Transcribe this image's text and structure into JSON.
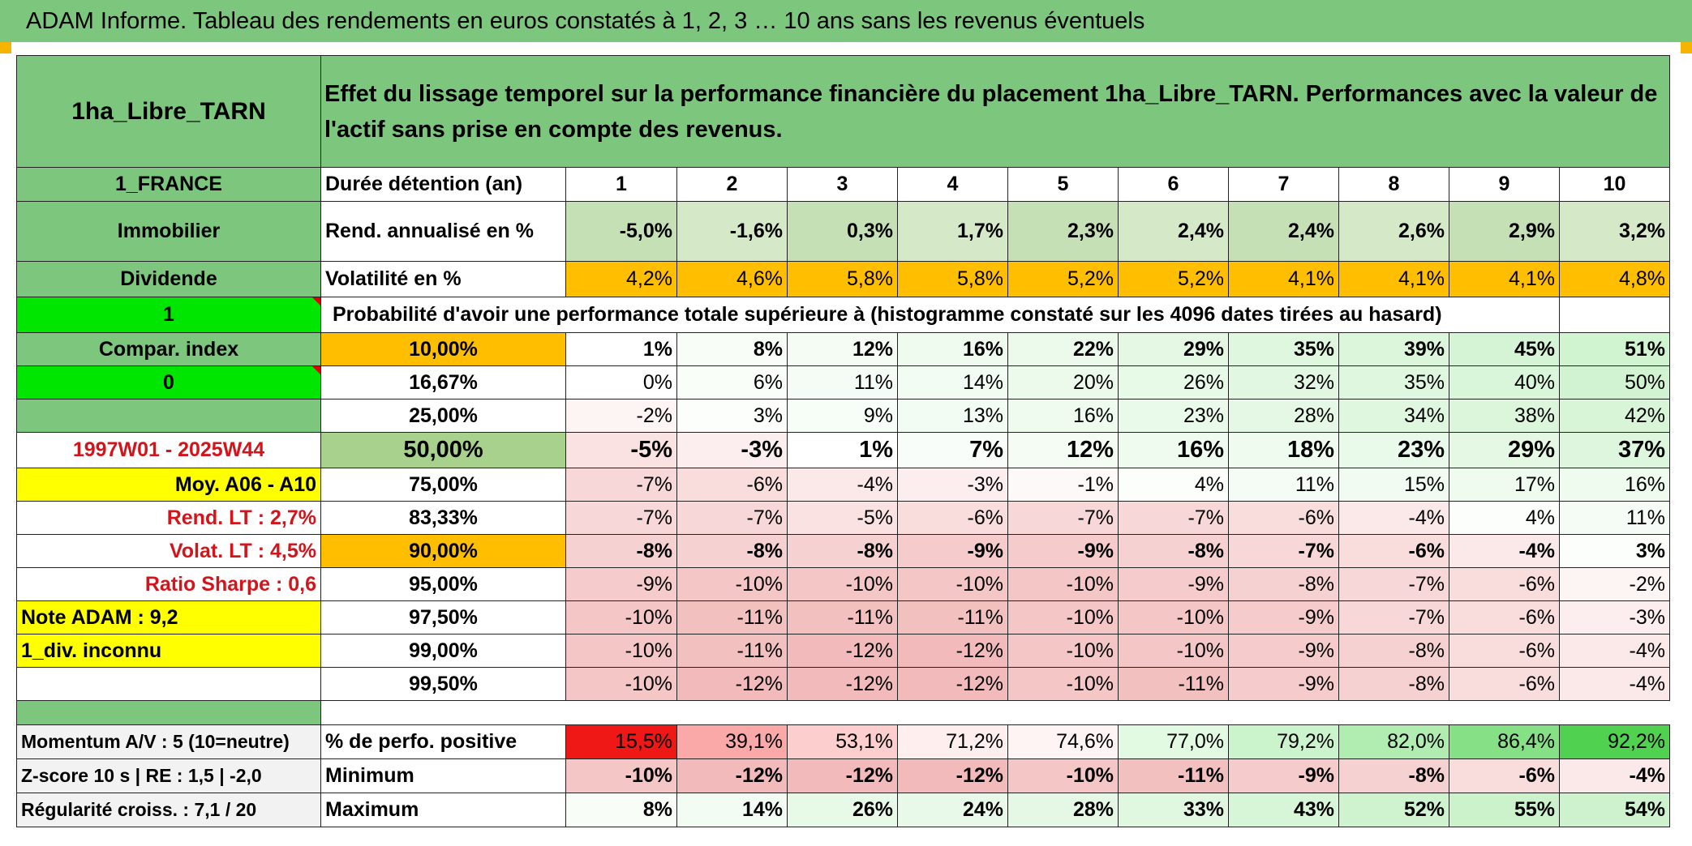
{
  "title": "ADAM Informe. Tableau des rendements en euros constatés à 1, 2, 3 … 10 ans sans les revenus éventuels",
  "asset_name": "1ha_Libre_TARN",
  "description": "Effet du lissage temporel sur la performance financière du placement 1ha_Libre_TARN. Performances avec la valeur de l'actif sans prise en compte des revenus.",
  "left_panel": {
    "country": "1_FRANCE",
    "category": "Immobilier",
    "dividend": "Dividende",
    "dividend_value": "1",
    "compar_index": "Compar. index",
    "compar_value": "0",
    "period": "1997W01 - 2025W44",
    "moy": "Moy. A06 - A10",
    "rend_lt": "Rend. LT :   2,7%",
    "volat_lt": "Volat. LT :   4,5%",
    "sharpe": "Ratio Sharpe :    0,6",
    "note": "Note ADAM : 9,2",
    "div_info": "1_div. inconnu",
    "momentum": "Momentum A/V : 5 (10=neutre)",
    "zscore": "Z-score 10 s | RE : 1,5 | -2,0",
    "regularite": "Régularité croiss. : 7,1 / 20"
  },
  "row_labels": {
    "duration": "Durée détention (an)",
    "rend": "Rend. annualisé en %",
    "volat": "Volatilité en %",
    "probability": "Probabilité d'avoir une performance totale supérieure à (histogramme constaté sur les 4096 dates tirées au hasard)",
    "pct_positive": "% de perfo. positive",
    "minimum": "Minimum",
    "maximum": "Maximum"
  },
  "years": [
    "1",
    "2",
    "3",
    "4",
    "5",
    "6",
    "7",
    "8",
    "9",
    "10"
  ],
  "rend": [
    "-5,0%",
    "-1,6%",
    "0,3%",
    "1,7%",
    "2,3%",
    "2,4%",
    "2,4%",
    "2,6%",
    "2,9%",
    "3,2%"
  ],
  "volat": [
    "4,2%",
    "4,6%",
    "5,8%",
    "5,8%",
    "5,2%",
    "5,2%",
    "4,1%",
    "4,1%",
    "4,1%",
    "4,8%"
  ],
  "percentiles": [
    {
      "p": "10,00%",
      "v": [
        "1%",
        "8%",
        "12%",
        "16%",
        "22%",
        "29%",
        "35%",
        "39%",
        "45%",
        "51%"
      ]
    },
    {
      "p": "16,67%",
      "v": [
        "0%",
        "6%",
        "11%",
        "14%",
        "20%",
        "26%",
        "32%",
        "35%",
        "40%",
        "50%"
      ]
    },
    {
      "p": "25,00%",
      "v": [
        "-2%",
        "3%",
        "9%",
        "13%",
        "16%",
        "23%",
        "28%",
        "34%",
        "38%",
        "42%"
      ]
    },
    {
      "p": "50,00%",
      "v": [
        "-5%",
        "-3%",
        "1%",
        "7%",
        "12%",
        "16%",
        "18%",
        "23%",
        "29%",
        "37%"
      ]
    },
    {
      "p": "75,00%",
      "v": [
        "-7%",
        "-6%",
        "-4%",
        "-3%",
        "-1%",
        "4%",
        "11%",
        "15%",
        "17%",
        "16%"
      ]
    },
    {
      "p": "83,33%",
      "v": [
        "-7%",
        "-7%",
        "-5%",
        "-6%",
        "-7%",
        "-7%",
        "-6%",
        "-4%",
        "4%",
        "11%"
      ]
    },
    {
      "p": "90,00%",
      "v": [
        "-8%",
        "-8%",
        "-8%",
        "-9%",
        "-9%",
        "-8%",
        "-7%",
        "-6%",
        "-4%",
        "3%"
      ]
    },
    {
      "p": "95,00%",
      "v": [
        "-9%",
        "-10%",
        "-10%",
        "-10%",
        "-10%",
        "-9%",
        "-8%",
        "-7%",
        "-6%",
        "-2%"
      ]
    },
    {
      "p": "97,50%",
      "v": [
        "-10%",
        "-11%",
        "-11%",
        "-11%",
        "-10%",
        "-10%",
        "-9%",
        "-7%",
        "-6%",
        "-3%"
      ]
    },
    {
      "p": "99,00%",
      "v": [
        "-10%",
        "-11%",
        "-12%",
        "-12%",
        "-10%",
        "-10%",
        "-9%",
        "-8%",
        "-6%",
        "-4%"
      ]
    },
    {
      "p": "99,50%",
      "v": [
        "-10%",
        "-12%",
        "-12%",
        "-12%",
        "-10%",
        "-11%",
        "-9%",
        "-8%",
        "-6%",
        "-4%"
      ]
    }
  ],
  "pct_positive": [
    "15,5%",
    "39,1%",
    "53,1%",
    "71,2%",
    "74,6%",
    "77,0%",
    "79,2%",
    "82,0%",
    "86,4%",
    "92,2%"
  ],
  "minimum": [
    "-10%",
    "-12%",
    "-12%",
    "-12%",
    "-10%",
    "-11%",
    "-9%",
    "-8%",
    "-6%",
    "-4%"
  ],
  "maximum": [
    "8%",
    "14%",
    "26%",
    "24%",
    "28%",
    "33%",
    "43%",
    "52%",
    "55%",
    "54%"
  ],
  "colors": {
    "header_green": "#7dc67d",
    "orange": "#ffbf00",
    "yellow": "#ffff00",
    "bright_green": "#00e600",
    "light_green": "#c5e0b4",
    "red_text": "#d4141b"
  }
}
